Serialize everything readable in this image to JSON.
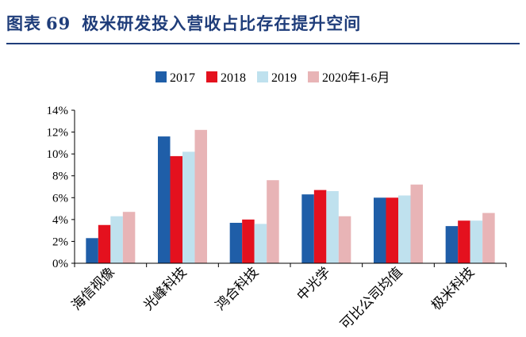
{
  "figure": {
    "label": "图表",
    "number": "69",
    "title": "极米研发投入营收占比存在提升空间"
  },
  "chart_data": {
    "type": "bar",
    "title": "",
    "xlabel": "",
    "ylabel": "",
    "categories": [
      "海信视像",
      "光峰科技",
      "鸿合科技",
      "中光学",
      "可比公司均值",
      "极米科技"
    ],
    "series": [
      {
        "name": "2017",
        "color": "#1f5ea8",
        "values": [
          2.3,
          11.6,
          3.7,
          6.3,
          6.0,
          3.4
        ]
      },
      {
        "name": "2018",
        "color": "#e4111e",
        "values": [
          3.5,
          9.8,
          4.0,
          6.7,
          6.0,
          3.9
        ]
      },
      {
        "name": "2019",
        "color": "#bfe1ee",
        "values": [
          4.3,
          10.2,
          3.6,
          6.6,
          6.2,
          3.9
        ]
      },
      {
        "name": "2020年1-6月",
        "color": "#e8b4b6",
        "values": [
          4.7,
          12.2,
          7.6,
          4.3,
          7.2,
          4.6
        ]
      }
    ],
    "ylim": [
      0,
      14
    ],
    "yticks": [
      0,
      2,
      4,
      6,
      8,
      10,
      12,
      14
    ],
    "ytick_labels": [
      "0%",
      "2%",
      "4%",
      "6%",
      "8%",
      "10%",
      "12%",
      "14%"
    ],
    "value_unit": "%",
    "grid": false,
    "legend_position": "top"
  }
}
